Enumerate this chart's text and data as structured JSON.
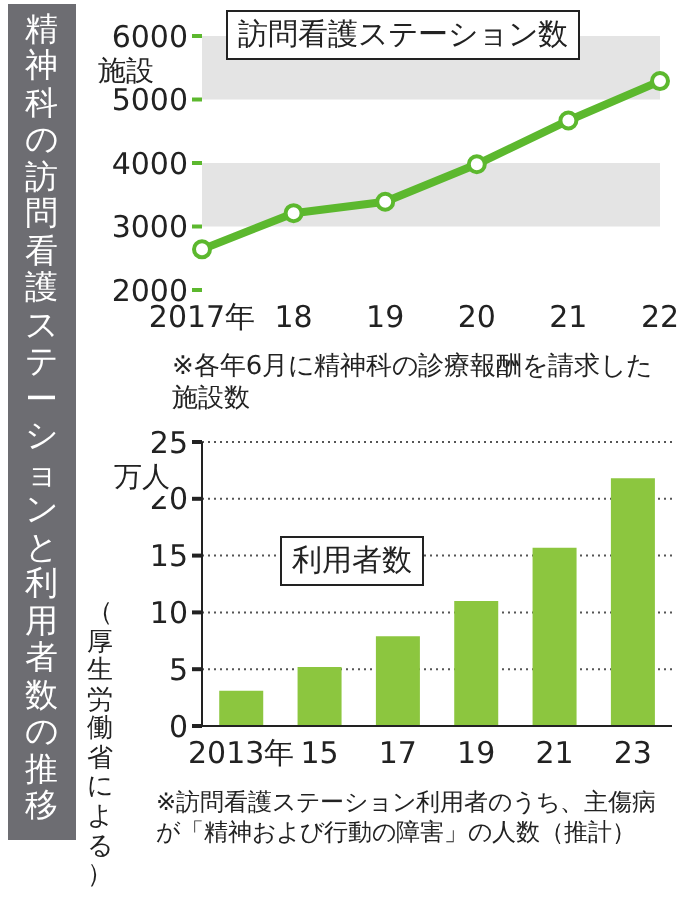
{
  "chart_data": [
    {
      "type": "line",
      "title": "精神科の訪問看護ステーションと利用者数の推移",
      "ylabel": "施設",
      "categories": [
        "2017年",
        "18",
        "19",
        "20",
        "21",
        "22"
      ],
      "series": [
        {
          "name": "訪問看護ステーション数",
          "color": "#5cb82e",
          "values": [
            2640,
            3210,
            3390,
            3980,
            4670,
            5290
          ]
        }
      ],
      "ylim": [
        2000,
        6000
      ],
      "yticks": [
        2000,
        3000,
        4000,
        5000,
        6000
      ],
      "marker": "circle",
      "legend": "top",
      "bands": [
        {
          "axis": "y",
          "from": 3000,
          "to": 4000,
          "color": "#e4e4e4"
        },
        {
          "axis": "y",
          "from": 5000,
          "to": 6000,
          "color": "#e4e4e4"
        }
      ],
      "annotations": [
        "※各年6月に精神科の診療報酬を請求した施設数"
      ]
    },
    {
      "type": "bar",
      "ylabel": "万人",
      "categories": [
        "2013年",
        "15",
        "17",
        "19",
        "21",
        "23"
      ],
      "series": [
        {
          "name": "利用者数",
          "color": "#8cc63f",
          "values": [
            3.1,
            5.2,
            7.9,
            11.0,
            15.7,
            21.8
          ]
        }
      ],
      "ylim": [
        0,
        25
      ],
      "yticks": [
        0,
        5,
        10,
        15,
        20,
        25
      ],
      "grid": "y",
      "legend": "top left",
      "annotations": [
        "※訪問看護ステーション利用者のうち、主傷病が「精神および行動の障害」の人数（推計）",
        "（厚生労働省による）"
      ]
    }
  ]
}
